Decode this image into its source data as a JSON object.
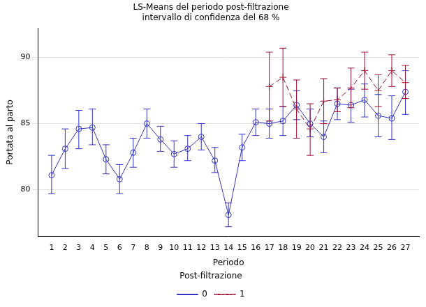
{
  "chart_data": {
    "type": "line",
    "title": "LS-Means del periodo post-filtrazione",
    "subtitle": "intervallo di confidenza del 68 %",
    "x_label": "Periodo",
    "y_label": "Portata al parto",
    "legend_title": "Post-filtrazione",
    "legend": "bottom",
    "grid": true,
    "x": [
      1,
      2,
      3,
      4,
      5,
      6,
      7,
      8,
      9,
      10,
      11,
      12,
      13,
      14,
      15,
      16,
      17,
      18,
      19,
      20,
      21,
      22,
      23,
      24,
      25,
      26,
      27
    ],
    "xlim": [
      0,
      28
    ],
    "xticks": [
      1,
      2,
      3,
      4,
      5,
      6,
      7,
      8,
      9,
      10,
      11,
      12,
      13,
      14,
      15,
      16,
      17,
      18,
      19,
      20,
      21,
      22,
      23,
      24,
      25,
      26,
      27
    ],
    "ylim": [
      76.5,
      92.2
    ],
    "yticks": [
      80,
      85,
      90
    ],
    "series": [
      {
        "name": "0",
        "color": "#3232c8",
        "marker": "circle",
        "line_style": "solid",
        "values": [
          81.1,
          83.1,
          84.6,
          84.7,
          82.3,
          80.8,
          82.8,
          85.0,
          83.8,
          82.7,
          83.1,
          84.0,
          82.2,
          78.1,
          83.2,
          85.1,
          85.0,
          85.2,
          86.4,
          85.0,
          84.0,
          86.5,
          86.4,
          86.8,
          85.6,
          85.4,
          87.4
        ],
        "error_low": [
          79.7,
          81.6,
          83.1,
          83.4,
          81.2,
          79.7,
          81.7,
          83.9,
          82.9,
          81.7,
          82.2,
          83.0,
          81.3,
          77.2,
          82.2,
          84.1,
          83.9,
          84.1,
          85.3,
          84.0,
          82.8,
          85.3,
          85.1,
          85.5,
          84.0,
          83.8,
          85.7
        ],
        "error_high": [
          82.6,
          84.6,
          86.0,
          86.1,
          83.4,
          81.9,
          83.9,
          86.1,
          84.8,
          83.7,
          84.1,
          85.0,
          83.2,
          79.0,
          84.2,
          86.1,
          86.1,
          86.3,
          87.5,
          86.1,
          85.2,
          87.7,
          87.6,
          88.0,
          87.2,
          87.1,
          89.0
        ]
      },
      {
        "name": "1",
        "color": "#a01030",
        "marker": "cross",
        "line_style": "dashed",
        "values": [
          null,
          null,
          null,
          null,
          null,
          null,
          null,
          null,
          null,
          null,
          null,
          null,
          null,
          null,
          null,
          null,
          87.8,
          88.5,
          86.1,
          84.6,
          86.7,
          86.8,
          87.7,
          89.0,
          87.5,
          89.0,
          88.1
        ],
        "error_low": [
          null,
          null,
          null,
          null,
          null,
          null,
          null,
          null,
          null,
          null,
          null,
          null,
          null,
          null,
          null,
          null,
          85.2,
          86.3,
          83.9,
          82.6,
          85.0,
          85.9,
          86.2,
          87.6,
          86.3,
          87.8,
          86.9
        ],
        "error_high": [
          null,
          null,
          null,
          null,
          null,
          null,
          null,
          null,
          null,
          null,
          null,
          null,
          null,
          null,
          null,
          null,
          90.4,
          90.7,
          88.3,
          86.5,
          88.4,
          87.7,
          89.2,
          90.4,
          88.7,
          90.2,
          89.4
        ]
      }
    ]
  }
}
